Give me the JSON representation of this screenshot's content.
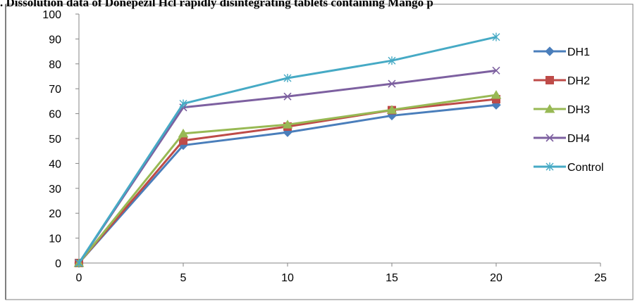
{
  "chart_data": {
    "type": "line",
    "title": ". Dissolution data of Donepezil Hcl rapidly disintegrating tablets containing Mango p",
    "xlabel": "",
    "ylabel": "",
    "x": [
      0,
      5,
      10,
      15,
      20
    ],
    "xlim": [
      0,
      25
    ],
    "ylim": [
      0,
      100
    ],
    "xticks": [
      0,
      5,
      10,
      15,
      20,
      25
    ],
    "yticks": [
      0,
      10,
      20,
      30,
      40,
      50,
      60,
      70,
      80,
      90,
      100
    ],
    "grid": false,
    "legend_position": "right",
    "series": [
      {
        "name": "DH1",
        "values": [
          0,
          47.3,
          52.5,
          59.2,
          63.5
        ],
        "color": "#4a7ebb",
        "marker": "diamond"
      },
      {
        "name": "DH2",
        "values": [
          0,
          49.2,
          54.8,
          61.4,
          65.8
        ],
        "color": "#be4b48",
        "marker": "square"
      },
      {
        "name": "DH3",
        "values": [
          0,
          52.0,
          55.6,
          61.5,
          67.5
        ],
        "color": "#98b954",
        "marker": "triangle"
      },
      {
        "name": "DH4",
        "values": [
          0,
          62.5,
          66.9,
          72.0,
          77.3
        ],
        "color": "#7d60a0",
        "marker": "x"
      },
      {
        "name": "Control",
        "values": [
          0,
          64.0,
          74.3,
          81.3,
          90.8
        ],
        "color": "#46aac5",
        "marker": "star"
      }
    ]
  }
}
